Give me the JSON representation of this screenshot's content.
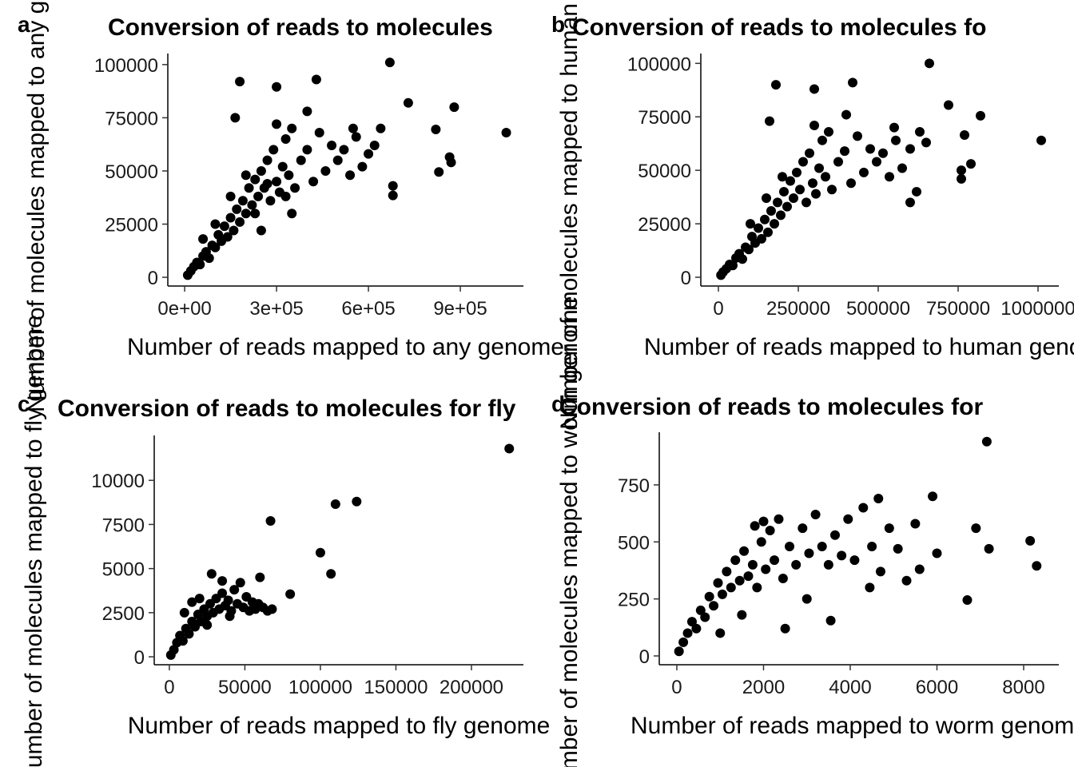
{
  "chart_data": [
    {
      "type": "scatter",
      "panel_label": "a",
      "title": "Conversion of reads to molecules",
      "xlabel": "Number of reads mapped to any genome",
      "ylabel": "Number of molecules mapped to any genome",
      "color": "#000000",
      "x": [
        10000,
        20000,
        30000,
        40000,
        50000,
        60000,
        70000,
        80000,
        90000,
        100000,
        110000,
        120000,
        130000,
        140000,
        150000,
        160000,
        170000,
        180000,
        190000,
        200000,
        210000,
        220000,
        230000,
        240000,
        250000,
        260000,
        270000,
        280000,
        290000,
        300000,
        310000,
        320000,
        330000,
        340000,
        350000,
        360000,
        380000,
        400000,
        420000,
        440000,
        460000,
        480000,
        500000,
        520000,
        540000,
        560000,
        580000,
        620000,
        640000,
        100000,
        60000,
        150000,
        200000,
        250000,
        300000,
        350000,
        400000,
        230000,
        270000,
        330000,
        670000,
        180000,
        300000,
        430000,
        165000,
        730000,
        820000,
        880000,
        1050000,
        830000,
        870000,
        865000,
        680000,
        680000,
        600000,
        550000
      ],
      "y": [
        1000,
        3000,
        5000,
        7000,
        6000,
        10000,
        12000,
        9000,
        15000,
        14000,
        20000,
        17000,
        24000,
        19000,
        28000,
        22000,
        32000,
        26000,
        36000,
        30000,
        42000,
        34000,
        46000,
        38000,
        50000,
        42000,
        55000,
        36000,
        60000,
        45000,
        40000,
        52000,
        65000,
        48000,
        70000,
        42000,
        55000,
        60000,
        45000,
        68000,
        50000,
        62000,
        55000,
        60000,
        48000,
        66000,
        52000,
        62000,
        70000,
        25000,
        18000,
        38000,
        48000,
        22000,
        72000,
        30000,
        78000,
        30000,
        44000,
        38000,
        101000,
        92000,
        89500,
        93000,
        75000,
        82000,
        69500,
        80000,
        68000,
        49500,
        54000,
        56500,
        43000,
        38500,
        58000,
        70000
      ],
      "xlim": [
        -55000,
        1106000
      ],
      "ylim": [
        -4100,
        105200
      ],
      "xticks": [
        {
          "value": 0,
          "label": "0e+00"
        },
        {
          "value": 300000,
          "label": "3e+05"
        },
        {
          "value": 600000,
          "label": "6e+05"
        },
        {
          "value": 900000,
          "label": "9e+05"
        }
      ],
      "yticks": [
        0,
        25000,
        50000,
        75000,
        100000
      ]
    },
    {
      "type": "scatter",
      "panel_label": "b",
      "title": "Conversion of reads to molecules fo",
      "xlabel": "Number of reads mapped to human genome",
      "ylabel": "Number of molecules mapped to human genome",
      "color": "#000000",
      "x": [
        8000,
        15000,
        25000,
        35000,
        45000,
        55000,
        65000,
        75000,
        85000,
        95000,
        105000,
        115000,
        125000,
        135000,
        145000,
        155000,
        165000,
        175000,
        185000,
        195000,
        205000,
        215000,
        225000,
        235000,
        245000,
        255000,
        265000,
        275000,
        285000,
        295000,
        305000,
        315000,
        325000,
        335000,
        345000,
        355000,
        375000,
        395000,
        415000,
        435000,
        455000,
        475000,
        495000,
        515000,
        535000,
        555000,
        575000,
        600000,
        630000,
        100000,
        150000,
        200000,
        300000,
        400000,
        660000,
        180000,
        300000,
        420000,
        160000,
        720000,
        770000,
        820000,
        1010000,
        760000,
        760000,
        790000,
        620000,
        600000,
        650000,
        550000
      ],
      "y": [
        1000,
        2500,
        4000,
        6000,
        5500,
        9000,
        11000,
        8500,
        14000,
        13000,
        19000,
        16000,
        23000,
        18000,
        27000,
        21000,
        31000,
        25000,
        35000,
        29000,
        40000,
        33000,
        45000,
        37000,
        49000,
        41000,
        54000,
        35000,
        58000,
        44000,
        39000,
        51000,
        64000,
        47000,
        68000,
        41000,
        54000,
        59000,
        44000,
        66000,
        49000,
        60000,
        54000,
        58000,
        47000,
        64000,
        51000,
        60000,
        68000,
        25000,
        37000,
        47000,
        71000,
        76000,
        100000,
        90000,
        88000,
        91000,
        73000,
        80500,
        66500,
        75500,
        64000,
        46000,
        50000,
        53000,
        40000,
        35000,
        63000,
        70000
      ],
      "xlim": [
        -55000,
        1065000
      ],
      "ylim": [
        -4100,
        104600
      ],
      "xticks": [
        0,
        250000,
        500000,
        750000,
        1000000
      ],
      "yticks": [
        0,
        25000,
        50000,
        75000,
        100000
      ]
    },
    {
      "type": "scatter",
      "panel_label": "c",
      "title": "Conversion of reads to molecules for fly",
      "xlabel": "Number of reads mapped to fly genome",
      "ylabel": "Number of molecules mapped to fly genome",
      "color": "#000000",
      "x": [
        1000,
        3000,
        5000,
        7000,
        9000,
        11000,
        13000,
        15000,
        17000,
        19000,
        21000,
        23000,
        25000,
        27000,
        29000,
        31000,
        33000,
        35000,
        37000,
        39000,
        41000,
        43000,
        45000,
        47000,
        49000,
        51000,
        53000,
        55000,
        57000,
        59000,
        62000,
        65000,
        68000,
        28000,
        35000,
        20000,
        10000,
        15000,
        40000,
        25000,
        225000,
        124000,
        110000,
        67000,
        100000,
        107000,
        80000,
        60000
      ],
      "y": [
        100,
        400,
        800,
        1200,
        900,
        1600,
        1300,
        2000,
        1700,
        2400,
        2000,
        2700,
        2300,
        3000,
        2500,
        3300,
        2700,
        3600,
        2900,
        3200,
        2600,
        3800,
        3000,
        4200,
        2800,
        3400,
        2600,
        3100,
        2700,
        3000,
        2800,
        2600,
        2700,
        4700,
        4300,
        3300,
        2500,
        3100,
        2300,
        1800,
        11800,
        8800,
        8650,
        7700,
        5900,
        4700,
        3550,
        4500
      ],
      "xlim": [
        -10000,
        234400
      ],
      "ylim": [
        -450,
        12545
      ],
      "xticks": [
        0,
        50000,
        100000,
        150000,
        200000
      ],
      "yticks": [
        0,
        2500,
        5000,
        7500,
        10000
      ]
    },
    {
      "type": "scatter",
      "panel_label": "d",
      "title": "Conversion of reads to molecules for",
      "xlabel": "Number of reads mapped to worm genome",
      "ylabel": "Number of molecules mapped to worm genome",
      "color": "#000000",
      "x": [
        50,
        150,
        250,
        350,
        450,
        550,
        650,
        750,
        850,
        950,
        1050,
        1150,
        1250,
        1350,
        1450,
        1550,
        1650,
        1750,
        1850,
        1950,
        2050,
        2150,
        2250,
        2350,
        2450,
        2600,
        2750,
        2900,
        3050,
        3200,
        3350,
        3500,
        3650,
        3800,
        3950,
        4100,
        4300,
        4500,
        4700,
        4900,
        5100,
        5300,
        5500,
        2000,
        1500,
        1000,
        2500,
        3000,
        1800,
        7150,
        8150,
        8300,
        6900,
        7200,
        6700,
        5900,
        6000,
        5600,
        4650,
        4450,
        3550
      ],
      "y": [
        20,
        60,
        100,
        150,
        120,
        200,
        170,
        260,
        220,
        320,
        270,
        370,
        300,
        420,
        330,
        460,
        350,
        400,
        300,
        500,
        380,
        550,
        420,
        600,
        340,
        480,
        400,
        560,
        450,
        620,
        480,
        400,
        530,
        440,
        600,
        420,
        650,
        480,
        370,
        560,
        470,
        330,
        580,
        590,
        180,
        100,
        120,
        250,
        570,
        940,
        505,
        395,
        560,
        470,
        245,
        700,
        450,
        380,
        690,
        300,
        155
      ],
      "xlim": [
        -405,
        8811
      ],
      "ylim": [
        -38.6,
        981
      ],
      "xticks": [
        0,
        2000,
        4000,
        6000,
        8000
      ],
      "yticks": [
        0,
        250,
        500,
        750
      ]
    }
  ]
}
